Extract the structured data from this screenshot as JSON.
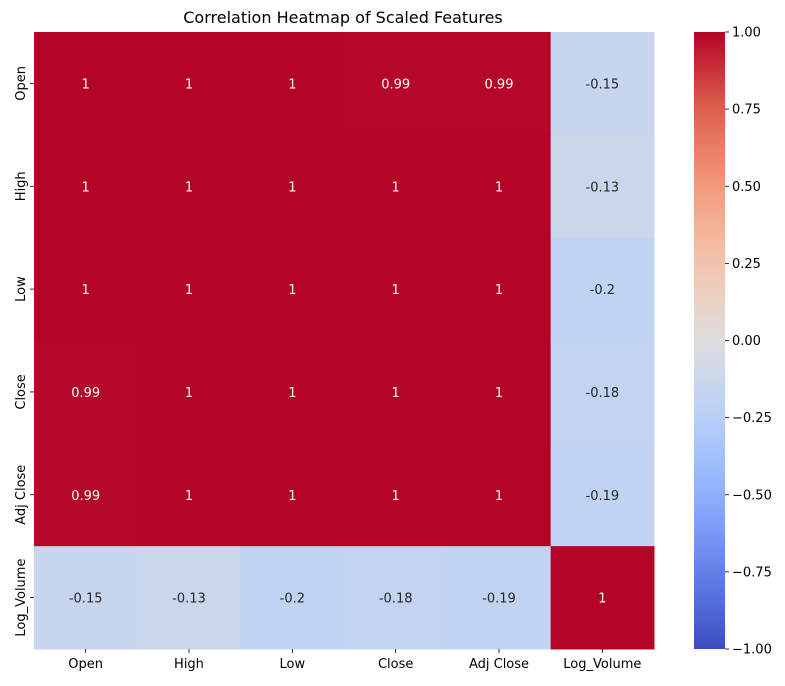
{
  "chart_data": {
    "type": "heatmap",
    "title": "Correlation Heatmap of Scaled Features",
    "xlabel": "",
    "ylabel": "",
    "x_labels": [
      "Open",
      "High",
      "Low",
      "Close",
      "Adj Close",
      "Log_Volume"
    ],
    "y_labels": [
      "Open",
      "High",
      "Low",
      "Close",
      "Adj Close",
      "Log_Volume"
    ],
    "values": [
      [
        1.0,
        0.998,
        0.998,
        0.993,
        0.993,
        -0.15
      ],
      [
        0.998,
        1.0,
        0.998,
        0.997,
        0.997,
        -0.13
      ],
      [
        0.998,
        0.998,
        1.0,
        0.998,
        0.998,
        -0.2
      ],
      [
        0.993,
        0.997,
        0.998,
        1.0,
        1.0,
        -0.18
      ],
      [
        0.993,
        0.997,
        0.998,
        1.0,
        1.0,
        -0.19
      ],
      [
        -0.15,
        -0.13,
        -0.2,
        -0.18,
        -0.19,
        1.0
      ]
    ],
    "annotations": [
      [
        "1",
        "1",
        "1",
        "0.99",
        "0.99",
        "-0.15"
      ],
      [
        "1",
        "1",
        "1",
        "1",
        "1",
        "-0.13"
      ],
      [
        "1",
        "1",
        "1",
        "1",
        "1",
        "-0.2"
      ],
      [
        "0.99",
        "1",
        "1",
        "1",
        "1",
        "-0.18"
      ],
      [
        "0.99",
        "1",
        "1",
        "1",
        "1",
        "-0.19"
      ],
      [
        "-0.15",
        "-0.13",
        "-0.2",
        "-0.18",
        "-0.19",
        "1"
      ]
    ],
    "colormap": "coolwarm",
    "vmin": -1.0,
    "vmax": 1.0,
    "colorbar_ticks": [
      1.0,
      0.75,
      0.5,
      0.25,
      0.0,
      -0.25,
      -0.5,
      -0.75,
      -1.0
    ],
    "colorbar_tick_labels": [
      "1.00",
      "0.75",
      "0.50",
      "0.25",
      "0.00",
      "−0.25",
      "−0.50",
      "−0.75",
      "−1.00"
    ],
    "colors": {
      "high": "#b40426",
      "mid": "#dddddd",
      "low": "#3b4cc0",
      "text_dark": "#262626",
      "text_light": "#ffffff"
    }
  }
}
